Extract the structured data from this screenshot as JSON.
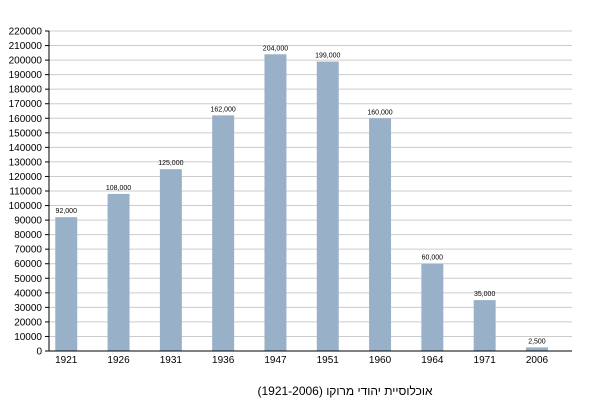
{
  "chart_data": {
    "type": "bar",
    "title": "",
    "xlabel": "(1921-2006) אוכלוסיית יהודי מרוקו",
    "ylabel": "",
    "categories": [
      "1921",
      "1926",
      "1931",
      "1936",
      "1947",
      "1951",
      "1960",
      "1964",
      "1971",
      "2006"
    ],
    "values": [
      92000,
      108000,
      125000,
      162000,
      204000,
      199000,
      160000,
      60000,
      35000,
      2500
    ],
    "data_labels": [
      "92,000",
      "108,000",
      "125,000",
      "162,000",
      "204,000",
      "199,000",
      "160,000",
      "60,000",
      "35,000",
      "2,500"
    ],
    "ylim": [
      0,
      220000
    ],
    "y_ticks": [
      0,
      10000,
      20000,
      30000,
      40000,
      50000,
      60000,
      70000,
      80000,
      90000,
      100000,
      110000,
      120000,
      130000,
      140000,
      150000,
      160000,
      170000,
      180000,
      190000,
      200000,
      210000,
      220000
    ],
    "grid": true,
    "legend": "none",
    "bar_color": "#98b1c8",
    "grid_color": "#cccccc",
    "axis_color": "#000000"
  }
}
